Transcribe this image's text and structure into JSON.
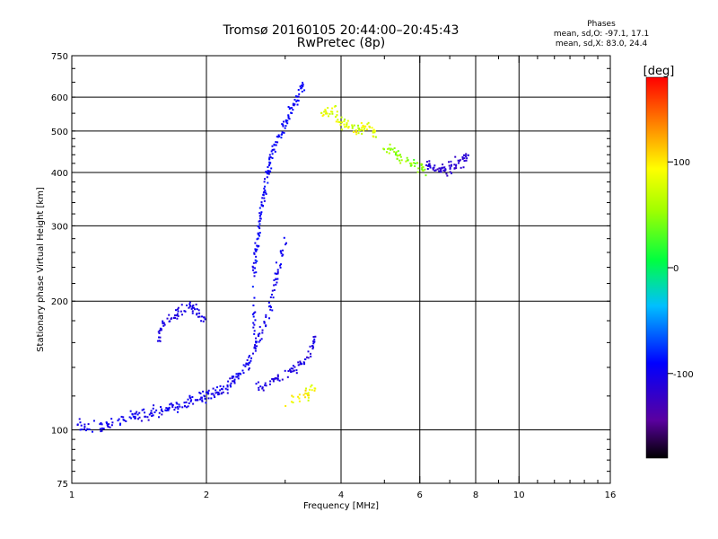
{
  "header": {
    "title": "Tromsø 20160105 20:44:00–20:45:43",
    "subtitle": "RwPretec (8p)",
    "stats_title": "Phases",
    "stats_line1": "mean, sd,O: -97.1, 17.1",
    "stats_line2": "mean, sd,X:  83.0, 24.4"
  },
  "colorbar": {
    "label": "[deg]",
    "ticks": [
      100,
      0,
      -100
    ],
    "range": [
      -180,
      180
    ]
  },
  "chart_data": {
    "type": "scatter",
    "xlabel": "Frequency [MHz]",
    "ylabel": "Stationary phase Virtual Height [km]",
    "xscale": "log",
    "yscale": "log",
    "xlim": [
      1,
      16
    ],
    "ylim": [
      75,
      750
    ],
    "xticks": [
      1,
      2,
      4,
      6,
      8,
      10,
      16
    ],
    "yticks": [
      75,
      100,
      200,
      300,
      400,
      500,
      600,
      750
    ],
    "xgrid": [
      2,
      4,
      6,
      8,
      10
    ],
    "ygrid": [
      100,
      200,
      300,
      400,
      500,
      600
    ],
    "color_variable": "phase [deg]",
    "traces": [
      {
        "mode": "O",
        "phase": -100,
        "phase_sd": 12,
        "points": [
          [
            1.03,
            102
          ],
          [
            1.1,
            101
          ],
          [
            1.2,
            103
          ],
          [
            1.3,
            106
          ],
          [
            1.4,
            108
          ],
          [
            1.5,
            109
          ],
          [
            1.6,
            111
          ],
          [
            1.7,
            113
          ],
          [
            1.8,
            115
          ],
          [
            1.9,
            118
          ],
          [
            2.0,
            120
          ],
          [
            2.1,
            122
          ],
          [
            2.2,
            125
          ],
          [
            2.3,
            130
          ],
          [
            2.4,
            136
          ],
          [
            2.5,
            145
          ],
          [
            2.6,
            160
          ],
          [
            2.7,
            178
          ],
          [
            2.8,
            205
          ],
          [
            2.9,
            240
          ],
          [
            3.0,
            280
          ]
        ]
      },
      {
        "mode": "O",
        "phase": -95,
        "phase_sd": 12,
        "points": [
          [
            2.55,
            170
          ],
          [
            2.55,
            230
          ],
          [
            2.58,
            260
          ],
          [
            2.62,
            290
          ],
          [
            2.65,
            320
          ],
          [
            2.7,
            360
          ],
          [
            2.75,
            400
          ],
          [
            2.8,
            440
          ],
          [
            2.9,
            480
          ],
          [
            3.0,
            520
          ],
          [
            3.1,
            560
          ],
          [
            3.2,
            600
          ],
          [
            3.3,
            640
          ]
        ]
      },
      {
        "mode": "O",
        "phase": -105,
        "phase_sd": 10,
        "points": [
          [
            1.55,
            160
          ],
          [
            1.6,
            175
          ],
          [
            1.7,
            185
          ],
          [
            1.8,
            195
          ],
          [
            1.9,
            190
          ],
          [
            2.0,
            180
          ]
        ]
      },
      {
        "mode": "O",
        "phase": -108,
        "phase_sd": 12,
        "points": [
          [
            2.6,
            125
          ],
          [
            2.8,
            130
          ],
          [
            3.0,
            135
          ],
          [
            3.2,
            140
          ],
          [
            3.4,
            150
          ],
          [
            3.5,
            165
          ]
        ]
      },
      {
        "mode": "O",
        "phase": -115,
        "phase_sd": 10,
        "points": [
          [
            6.2,
            420
          ],
          [
            6.5,
            410
          ],
          [
            6.8,
            405
          ],
          [
            7.1,
            412
          ],
          [
            7.4,
            425
          ],
          [
            7.7,
            440
          ]
        ]
      },
      {
        "mode": "X",
        "phase": 80,
        "phase_sd": 25,
        "points": [
          [
            3.6,
            550
          ],
          [
            3.8,
            560
          ],
          [
            4.0,
            520
          ],
          [
            4.2,
            510
          ],
          [
            4.4,
            500
          ],
          [
            4.6,
            520
          ],
          [
            4.8,
            480
          ]
        ]
      },
      {
        "mode": "X",
        "phase": 50,
        "phase_sd": 20,
        "points": [
          [
            5.0,
            460
          ],
          [
            5.3,
            440
          ],
          [
            5.6,
            425
          ],
          [
            5.9,
            415
          ],
          [
            6.2,
            405
          ]
        ]
      },
      {
        "mode": "X",
        "phase": 90,
        "phase_sd": 25,
        "points": [
          [
            3.3,
            120
          ],
          [
            3.5,
            125
          ],
          [
            3.0,
            115
          ]
        ]
      }
    ]
  }
}
